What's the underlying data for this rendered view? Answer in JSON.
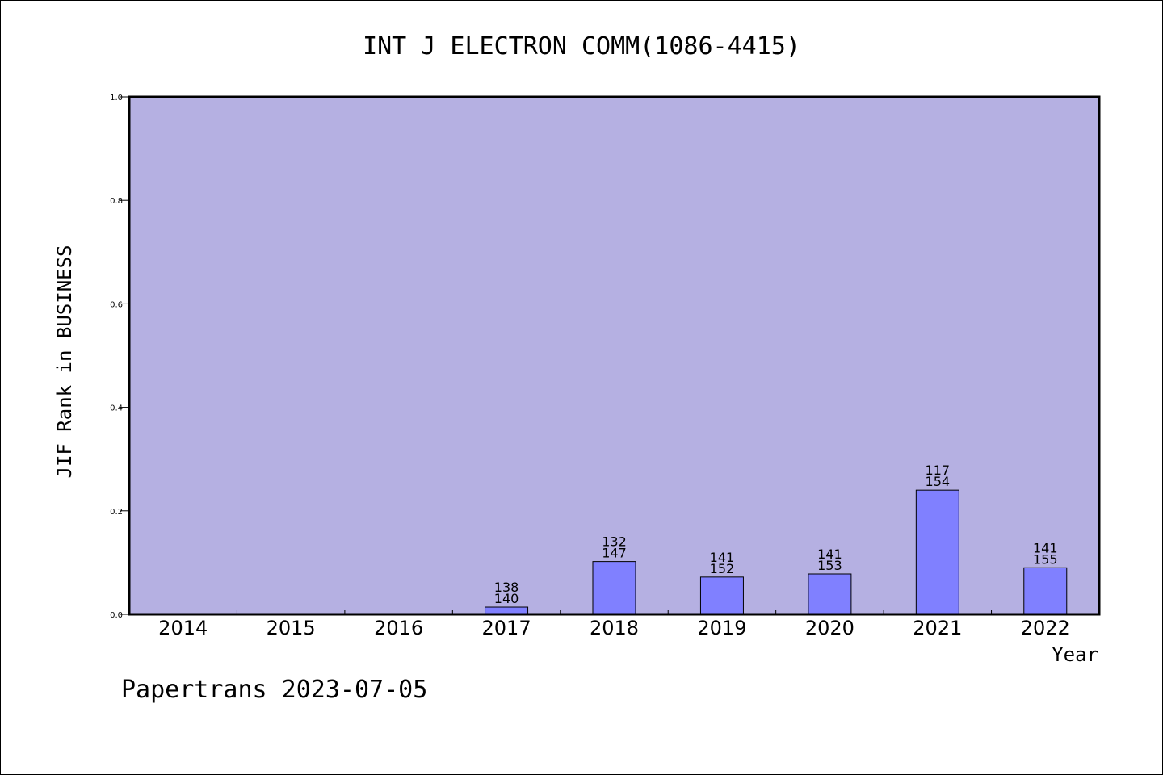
{
  "chart_data": {
    "type": "bar",
    "title": "INT J ELECTRON COMM(1086-4415)",
    "xlabel": "Year",
    "ylabel": "JIF Rank in BUSINESS",
    "ylim": [
      0,
      1.0
    ],
    "yticks": [
      "0.0",
      "0.2",
      "0.4",
      "0.6",
      "0.8",
      "1.0"
    ],
    "categories": [
      "2014",
      "2015",
      "2016",
      "2017",
      "2018",
      "2019",
      "2020",
      "2021",
      "2022"
    ],
    "values": [
      null,
      null,
      null,
      0.014,
      0.102,
      0.072,
      0.078,
      0.24,
      0.09
    ],
    "labels": [
      null,
      null,
      null,
      {
        "top": "138",
        "bottom": "140"
      },
      {
        "top": "132",
        "bottom": "147"
      },
      {
        "top": "141",
        "bottom": "152"
      },
      {
        "top": "141",
        "bottom": "153"
      },
      {
        "top": "117",
        "bottom": "154"
      },
      {
        "top": "141",
        "bottom": "155"
      }
    ],
    "colors": {
      "plot_background": "#b5b0e2",
      "bar_fill": "#8080ff",
      "bar_stroke": "#000000",
      "axis": "#000000"
    },
    "grid": false,
    "legend": "none"
  },
  "footer": {
    "text": "Papertrans 2023-07-05"
  }
}
